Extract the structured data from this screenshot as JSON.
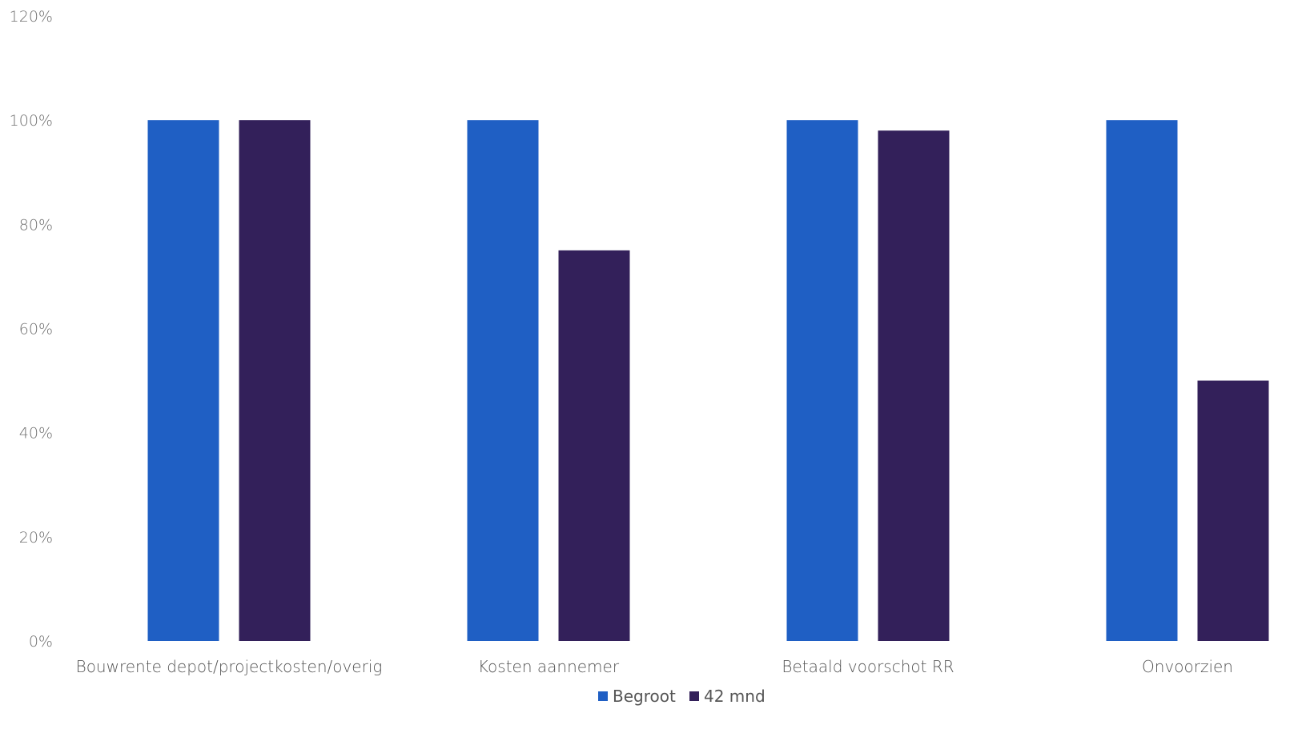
{
  "chart_data": {
    "type": "bar",
    "title": "",
    "xlabel": "",
    "ylabel": "",
    "ylim": [
      0,
      120
    ],
    "y_ticks": [
      {
        "value": 0,
        "label": "0%"
      },
      {
        "value": 20,
        "label": "20%"
      },
      {
        "value": 40,
        "label": "40%"
      },
      {
        "value": 60,
        "label": "60%"
      },
      {
        "value": 80,
        "label": "80%"
      },
      {
        "value": 100,
        "label": "100%"
      },
      {
        "value": 120,
        "label": "120%"
      }
    ],
    "grid": false,
    "legend_position": "bottom",
    "categories": [
      "Bouwrente depot/projectkosten/overig",
      "Kosten aannemer",
      "Betaald voorschot RR",
      "Onvoorzien"
    ],
    "series": [
      {
        "name": "Begroot",
        "color": "#1f5fc4",
        "values": [
          100,
          100,
          100,
          100
        ]
      },
      {
        "name": "42 mnd",
        "color": "#33205a",
        "values": [
          100,
          75,
          98,
          50
        ]
      }
    ]
  }
}
